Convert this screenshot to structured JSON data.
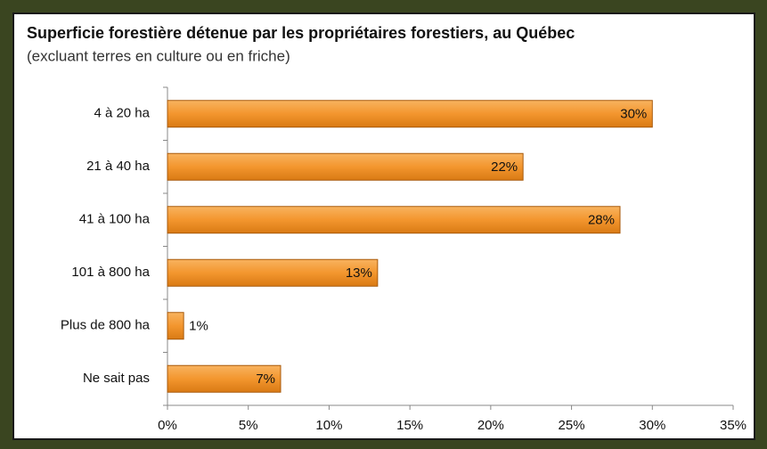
{
  "chart_data": {
    "type": "bar",
    "orientation": "horizontal",
    "title": "Superficie forestière détenue par les propriétaires forestiers, au Québec",
    "subtitle": "(excluant terres en culture ou en friche)",
    "categories": [
      "4 à 20 ha",
      "21 à 40 ha",
      "41 à 100 ha",
      "101 à 800 ha",
      "Plus de 800 ha",
      "Ne sait pas"
    ],
    "values": [
      30,
      22,
      28,
      13,
      1,
      7
    ],
    "value_labels": [
      "30%",
      "22%",
      "28%",
      "13%",
      "1%",
      "7%"
    ],
    "color": "#f3962e",
    "xlim": [
      0,
      35
    ],
    "xticks": [
      {
        "value": 0,
        "label": "0%"
      },
      {
        "value": 5,
        "label": "5%"
      },
      {
        "value": 10,
        "label": "10%"
      },
      {
        "value": 15,
        "label": "15%"
      },
      {
        "value": 20,
        "label": "20%"
      },
      {
        "value": 25,
        "label": "25%"
      },
      {
        "value": 30,
        "label": "30%"
      },
      {
        "value": 35,
        "label": "35%"
      }
    ]
  }
}
